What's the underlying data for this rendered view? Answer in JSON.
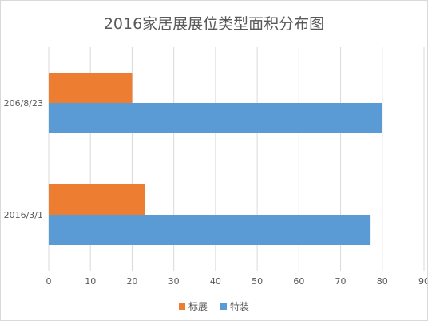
{
  "chart_data": {
    "type": "bar",
    "orientation": "horizontal",
    "title": "2016家居展展位类型面积分布图",
    "xlabel": "",
    "ylabel": "",
    "categories": [
      "2016/3/1",
      "206/8/23"
    ],
    "xlim": [
      0,
      90
    ],
    "x_ticks": [
      0,
      10,
      20,
      30,
      40,
      50,
      60,
      70,
      80,
      90
    ],
    "grid": true,
    "legend_position": "bottom",
    "series": [
      {
        "name": "特装",
        "color": "#5b9bd5",
        "values": [
          77,
          80
        ]
      },
      {
        "name": "标展",
        "color": "#ed7d31",
        "values": [
          23,
          20
        ]
      }
    ]
  }
}
